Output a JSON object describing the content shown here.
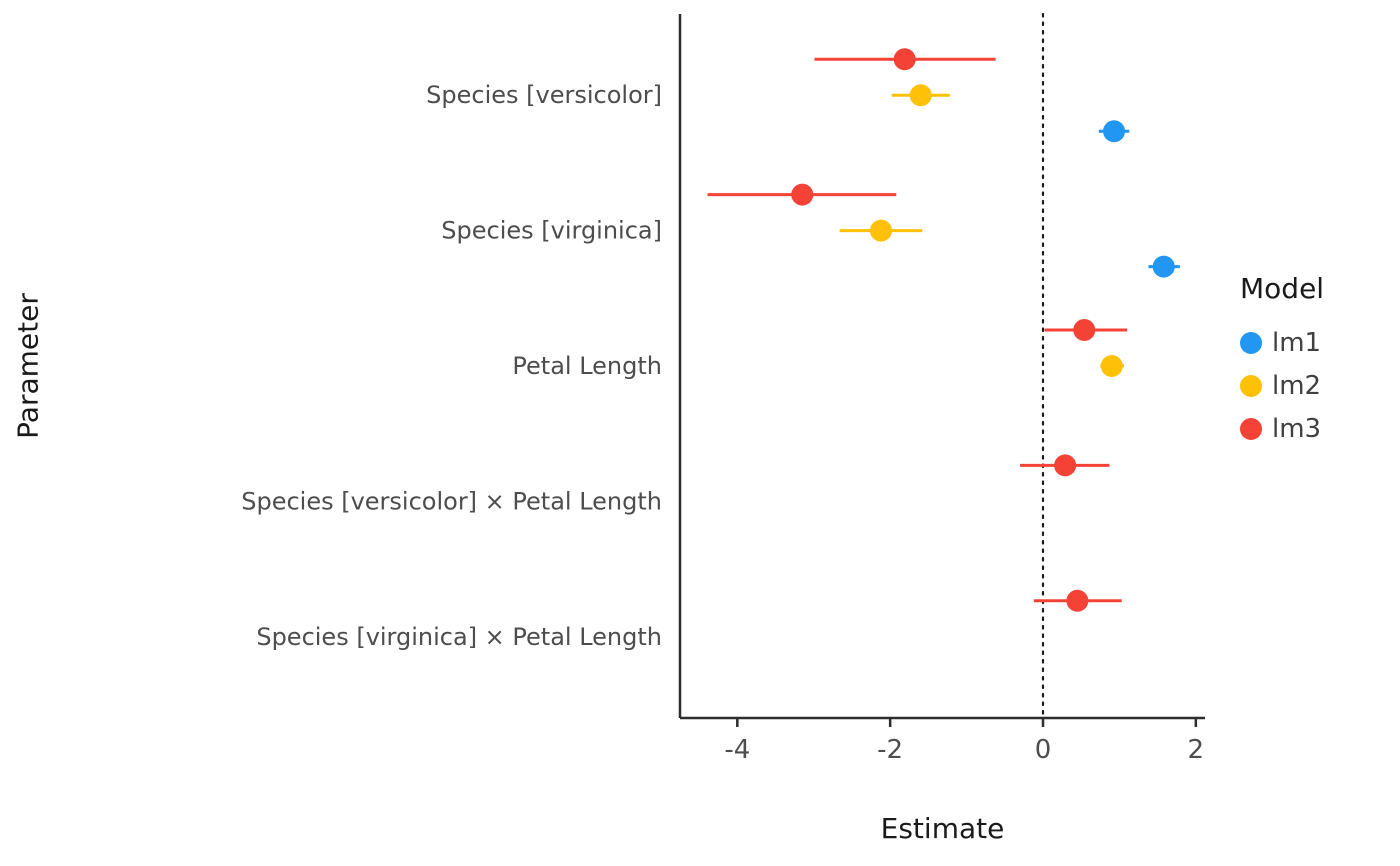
{
  "chart_data": {
    "type": "scatter",
    "title": "",
    "xlabel": "Estimate",
    "ylabel": "Parameter",
    "xlim": [
      -4.75,
      2.12
    ],
    "x_ticks": [
      -4,
      -2,
      0,
      2
    ],
    "grid": false,
    "reference_line": 0,
    "categories": [
      "Species [versicolor]",
      "Species [virginica]",
      "Petal Length",
      "Species [versicolor] × Petal Length",
      "Species [virginica] × Petal Length"
    ],
    "legend": {
      "title": "Model",
      "position": "right"
    },
    "series": [
      {
        "name": "lm1",
        "color": "#2196F3",
        "points": [
          {
            "category": "Species [versicolor]",
            "estimate": 0.93,
            "ci_low": 0.73,
            "ci_high": 1.13
          },
          {
            "category": "Species [virginica]",
            "estimate": 1.58,
            "ci_low": 1.38,
            "ci_high": 1.79
          }
        ]
      },
      {
        "name": "lm2",
        "color": "#FFC107",
        "points": [
          {
            "category": "Species [versicolor]",
            "estimate": -1.6,
            "ci_low": -1.98,
            "ci_high": -1.22
          },
          {
            "category": "Species [virginica]",
            "estimate": -2.12,
            "ci_low": -2.66,
            "ci_high": -1.58
          },
          {
            "category": "Petal Length",
            "estimate": 0.9,
            "ci_low": 0.75,
            "ci_high": 1.06
          }
        ]
      },
      {
        "name": "lm3",
        "color": "#F44336",
        "points": [
          {
            "category": "Species [versicolor]",
            "estimate": -1.81,
            "ci_low": -2.99,
            "ci_high": -0.62
          },
          {
            "category": "Species [virginica]",
            "estimate": -3.15,
            "ci_low": -4.39,
            "ci_high": -1.92
          },
          {
            "category": "Petal Length",
            "estimate": 0.54,
            "ci_low": 0.02,
            "ci_high": 1.1
          },
          {
            "category": "Species [versicolor] × Petal Length",
            "estimate": 0.29,
            "ci_low": -0.3,
            "ci_high": 0.87
          },
          {
            "category": "Species [virginica] × Petal Length",
            "estimate": 0.45,
            "ci_low": -0.12,
            "ci_high": 1.03
          }
        ]
      }
    ]
  }
}
